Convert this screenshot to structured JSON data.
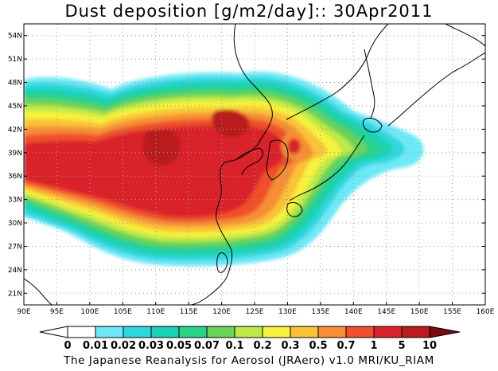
{
  "title": "Dust deposition [g/m2/day]:: 30Apr2011",
  "footer": "The Japanese Reanalysis for Aerosol (JRAero) v1.0 MRI/KU_RIAM",
  "map": {
    "lon_range": [
      90,
      160
    ],
    "lat_range": [
      19.5,
      55.5
    ],
    "lon_ticks": [
      "90E",
      "95E",
      "100E",
      "105E",
      "110E",
      "115E",
      "120E",
      "125E",
      "130E",
      "135E",
      "140E",
      "145E",
      "150E",
      "155E",
      "160E"
    ],
    "lat_ticks": [
      "21N",
      "24N",
      "27N",
      "30N",
      "33N",
      "36N",
      "39N",
      "42N",
      "45N",
      "48N",
      "51N",
      "54N"
    ],
    "gridlines": "dotted"
  },
  "colorbar": {
    "labels": [
      "0",
      "0.01",
      "0.02",
      "0.03",
      "0.05",
      "0.07",
      "0.1",
      "0.2",
      "0.3",
      "0.5",
      "0.7",
      "1",
      "5",
      "10"
    ],
    "colors": [
      "#ffffff",
      "#6ee8f6",
      "#2ed7df",
      "#1ad1b4",
      "#2ad38a",
      "#6ad257",
      "#bde94a",
      "#f7f23e",
      "#f9c238",
      "#f68e35",
      "#ef4f2a",
      "#d9232a",
      "#b91b1e",
      "#920c12"
    ],
    "extend_low_color": "#ffffff",
    "extend_high_color": "#7a0a0e"
  },
  "colors": {
    "land_outline": "#000000",
    "grid": "#9a9a9a"
  }
}
